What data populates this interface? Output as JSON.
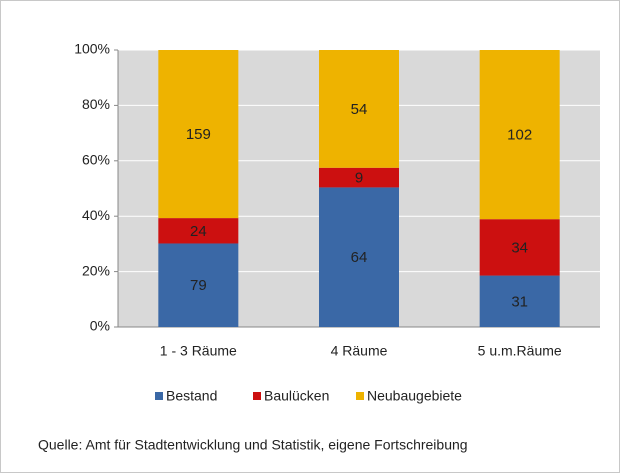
{
  "chart_data": {
    "type": "bar",
    "stacking": "percent",
    "categories": [
      "1 - 3 Räume",
      "4 Räume",
      "5 u.m.Räume"
    ],
    "series": [
      {
        "name": "Bestand",
        "color": "#3a68a6",
        "values": [
          79,
          64,
          31
        ]
      },
      {
        "name": "Baulücken",
        "color": "#cc1010",
        "values": [
          24,
          9,
          34
        ]
      },
      {
        "name": "Neubaugebiete",
        "color": "#eeb300",
        "values": [
          159,
          54,
          102
        ]
      }
    ],
    "ylim": [
      0,
      100
    ],
    "yticks": [
      {
        "value": 0,
        "label": "0%"
      },
      {
        "value": 20,
        "label": "20%"
      },
      {
        "value": 40,
        "label": "40%"
      },
      {
        "value": 60,
        "label": "60%"
      },
      {
        "value": 80,
        "label": "80%"
      },
      {
        "value": 100,
        "label": "100%"
      }
    ],
    "grid": true,
    "legend": "bottom",
    "source": "Quelle: Amt für Stadtentwicklung und Statistik, eigene Fortschreibung"
  }
}
